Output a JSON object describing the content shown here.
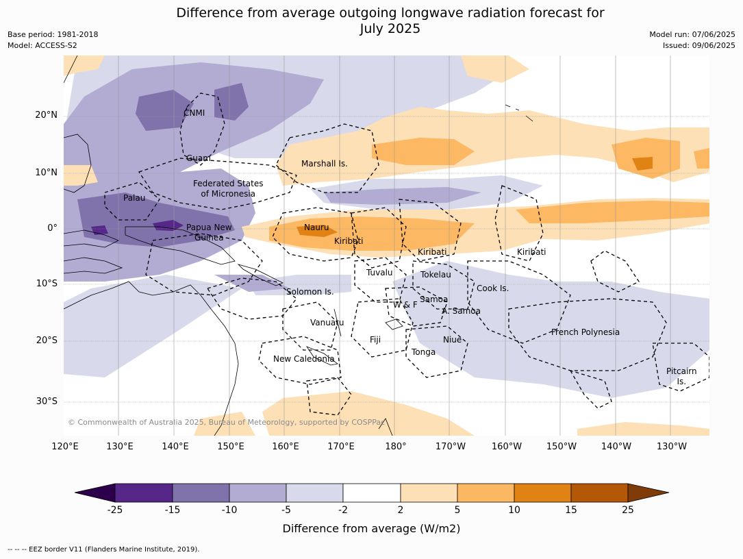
{
  "title": {
    "line1": "Difference from average outgoing longwave radiation forecast for",
    "line2": "July 2025"
  },
  "meta": {
    "base_period": "Base period: 1981-2018",
    "model": "Model: ACCESS-S2",
    "model_run": "Model run: 07/06/2025",
    "issued": "Issued: 09/06/2025"
  },
  "lat_labels": [
    "20°N",
    "10°N",
    "0°",
    "10°S",
    "20°S",
    "30°S"
  ],
  "lon_labels": [
    "120°E",
    "130°E",
    "140°E",
    "150°E",
    "160°E",
    "170°E",
    "180°",
    "170°W",
    "160°W",
    "150°W",
    "140°W",
    "130°W"
  ],
  "places": {
    "cnmi": "CNMI",
    "guam": "Guam",
    "marshall": "Marshall Is.",
    "fsm_line1": "Federated States",
    "fsm_line2": "of Micronesia",
    "palau": "Palau",
    "png_line1": "Papua New",
    "png_line2": "Guinea",
    "nauru": "Nauru",
    "kiribati_w": "Kiribati",
    "kiribati_c": "Kiribati",
    "kiribati_e": "Kiribati",
    "tuvalu": "Tuvalu",
    "tokelau": "Tokelau",
    "cook": "Cook Is.",
    "solomon": "Solomon Is.",
    "wf": "W & F",
    "samoa": "Samoa",
    "asamoa": "A. Samoa",
    "vanuatu": "Vanuatu",
    "fiji": "Fiji",
    "niue": "Niue",
    "tonga": "Tonga",
    "frpoly": "French Polynesia",
    "newcal": "New Caledonia",
    "pitcairn_line1": "Pitcairn",
    "pitcairn_line2": "Is."
  },
  "copyright": "© Commonwealth of Australia 2025, Bureau of Meteorology, supported by COSPPac",
  "colorbar": {
    "ticks": [
      "-25",
      "-15",
      "-10",
      "-5",
      "-2",
      "2",
      "5",
      "10",
      "15",
      "25"
    ],
    "colors": [
      "#2d004b",
      "#542788",
      "#8073ac",
      "#b2abd2",
      "#d8daeb",
      "#ffffff",
      "#fee0b6",
      "#fdb863",
      "#e08214",
      "#b35806",
      "#7f3b08"
    ],
    "label": "Difference from average (W/m2)"
  },
  "footnote": "--  --  -- EEZ border V11 (Flanders Marine Institute, 2019)."
}
